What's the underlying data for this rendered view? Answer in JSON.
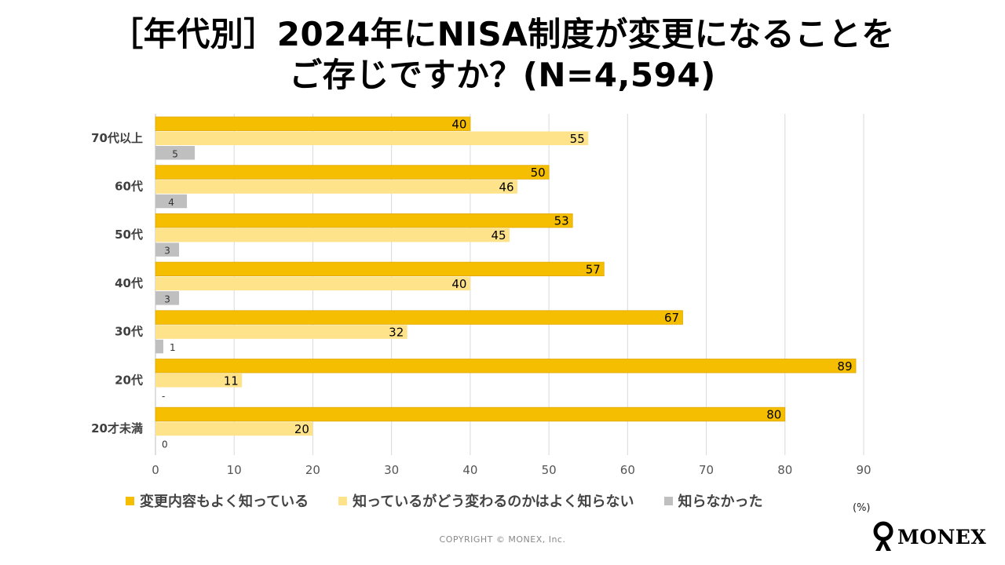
{
  "title": {
    "line1": "［年代別］2024年にNISA制度が変更になることを",
    "line2": "ご存じですか？(N=4,594)"
  },
  "chart_data": {
    "type": "bar",
    "orientation": "horizontal",
    "categories": [
      "70代以上",
      "60代",
      "50代",
      "40代",
      "30代",
      "20代",
      "20才未満"
    ],
    "series": [
      {
        "name": "変更内容もよく知っている",
        "color": "#F5BE00",
        "values": [
          40,
          50,
          53,
          57,
          67,
          89,
          80
        ],
        "labels": [
          "40",
          "50",
          "53",
          "57",
          "67",
          "89",
          "80"
        ]
      },
      {
        "name": "知っているがどう変わるのかはよく知らない",
        "color": "#FFE38A",
        "values": [
          55,
          46,
          45,
          40,
          32,
          11,
          20
        ],
        "labels": [
          "55",
          "46",
          "45",
          "40",
          "32",
          "11",
          "20"
        ]
      },
      {
        "name": "知らなかった",
        "color": "#BFBFBF",
        "values": [
          5,
          4,
          3,
          3,
          1,
          0,
          0
        ],
        "labels": [
          "5",
          "4",
          "3",
          "3",
          "1",
          "-",
          "0"
        ]
      }
    ],
    "xlim": [
      0,
      90
    ],
    "xticks": [
      "0",
      "10",
      "20",
      "30",
      "40",
      "50",
      "60",
      "70",
      "80",
      "90"
    ],
    "unit": "(%)",
    "legend_position": "bottom",
    "grid": true
  },
  "footer": {
    "copyright": "COPYRIGHT © MONEX, Inc.",
    "logo_text": "MONEX"
  }
}
